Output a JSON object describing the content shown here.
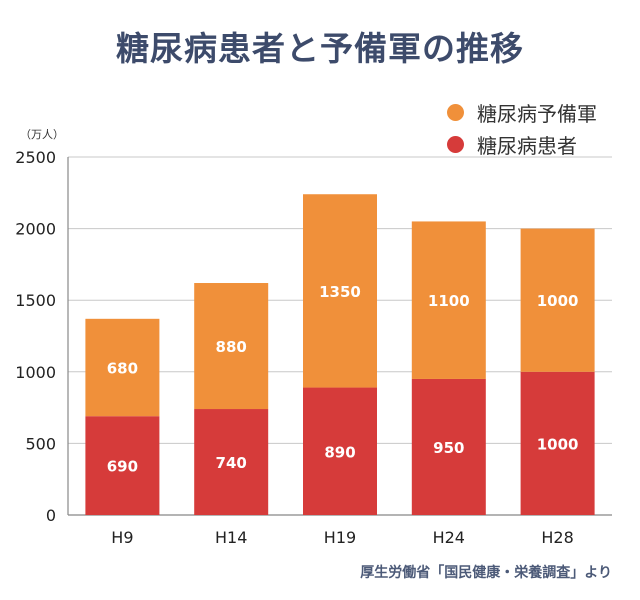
{
  "title": "糖尿病患者と予備軍の推移",
  "unit_label": "（万人）",
  "source": "厚生労働省「国民健康・栄養調査」より",
  "colors": {
    "title": "#3d4b6b",
    "prediabetes": "#f0903a",
    "diabetes": "#d63b3a",
    "grid": "#c8c8c8",
    "axis": "#888888"
  },
  "chart_data": {
    "type": "bar",
    "stacked": true,
    "title": "糖尿病患者と予備軍の推移",
    "ylabel": "（万人）",
    "xlabel": "",
    "categories": [
      "H9",
      "H14",
      "H19",
      "H24",
      "H28"
    ],
    "ylim": [
      0,
      2500
    ],
    "yticks": [
      0,
      500,
      1000,
      1500,
      2000,
      2500
    ],
    "grid": true,
    "legend_position": "top-right",
    "series": [
      {
        "name": "糖尿病患者",
        "color": "#d63b3a",
        "values": [
          690,
          740,
          890,
          950,
          1000
        ]
      },
      {
        "name": "糖尿病予備軍",
        "color": "#f0903a",
        "values": [
          680,
          880,
          1350,
          1100,
          1000
        ]
      }
    ]
  },
  "legend": [
    {
      "label": "糖尿病予備軍",
      "color": "#f0903a"
    },
    {
      "label": "糖尿病患者",
      "color": "#d63b3a"
    }
  ]
}
